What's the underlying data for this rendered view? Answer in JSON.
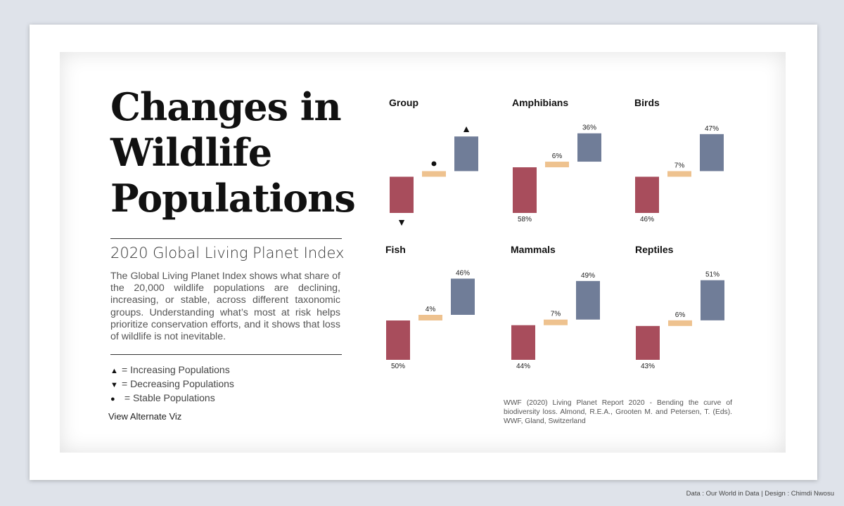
{
  "header": {
    "title_lines": [
      "Changes in",
      "Wildlife",
      "Populations"
    ],
    "subtitle": "2020 Global Living Planet Index",
    "description": "The Global Living Planet Index shows what share of the 20,000 wildlife populations are declining, increasing, or stable, across different taxonomic groups. Understanding what’s most at risk helps prioritize conservation efforts, and it shows that loss of wildlife is not inevitable."
  },
  "legend": [
    {
      "symbol": "▲",
      "label": "= Increasing Populations",
      "icon": "triangle-up-icon"
    },
    {
      "symbol": "▼",
      "label": "= Decreasing Populations",
      "icon": "triangle-down-icon"
    },
    {
      "symbol": "●",
      "label": " = Stable Populations",
      "icon": "circle-icon"
    }
  ],
  "alt_viz_label": "View Alternate Viz",
  "source": "WWF (2020) Living Planet Report 2020 - Bending the curve of biodiversity loss. Almond, R.E.A., Grooten M. and Petersen, T. (Eds). WWF, Gland, Switzerland",
  "credit": "Data : Our World in Data | Design : Chimdi Nwosu",
  "colors": {
    "decreasing": "#a84d5c",
    "stable": "#eec28f",
    "increasing": "#707d98"
  },
  "chart_data": {
    "type": "bar",
    "series_order": [
      "decreasing",
      "stable",
      "increasing"
    ],
    "key_panel": {
      "title": "Group",
      "symbols": {
        "decreasing": "▼",
        "stable": "●",
        "increasing": "▲"
      }
    },
    "panels": [
      {
        "title": "Amphibians",
        "decreasing": 58,
        "stable": 6,
        "increasing": 36
      },
      {
        "title": "Birds",
        "decreasing": 46,
        "stable": 7,
        "increasing": 47
      },
      {
        "title": "Fish",
        "decreasing": 50,
        "stable": 4,
        "increasing": 46
      },
      {
        "title": "Mammals",
        "decreasing": 44,
        "stable": 7,
        "increasing": 49
      },
      {
        "title": "Reptiles",
        "decreasing": 43,
        "stable": 6,
        "increasing": 51
      }
    ],
    "value_suffix": "%"
  }
}
